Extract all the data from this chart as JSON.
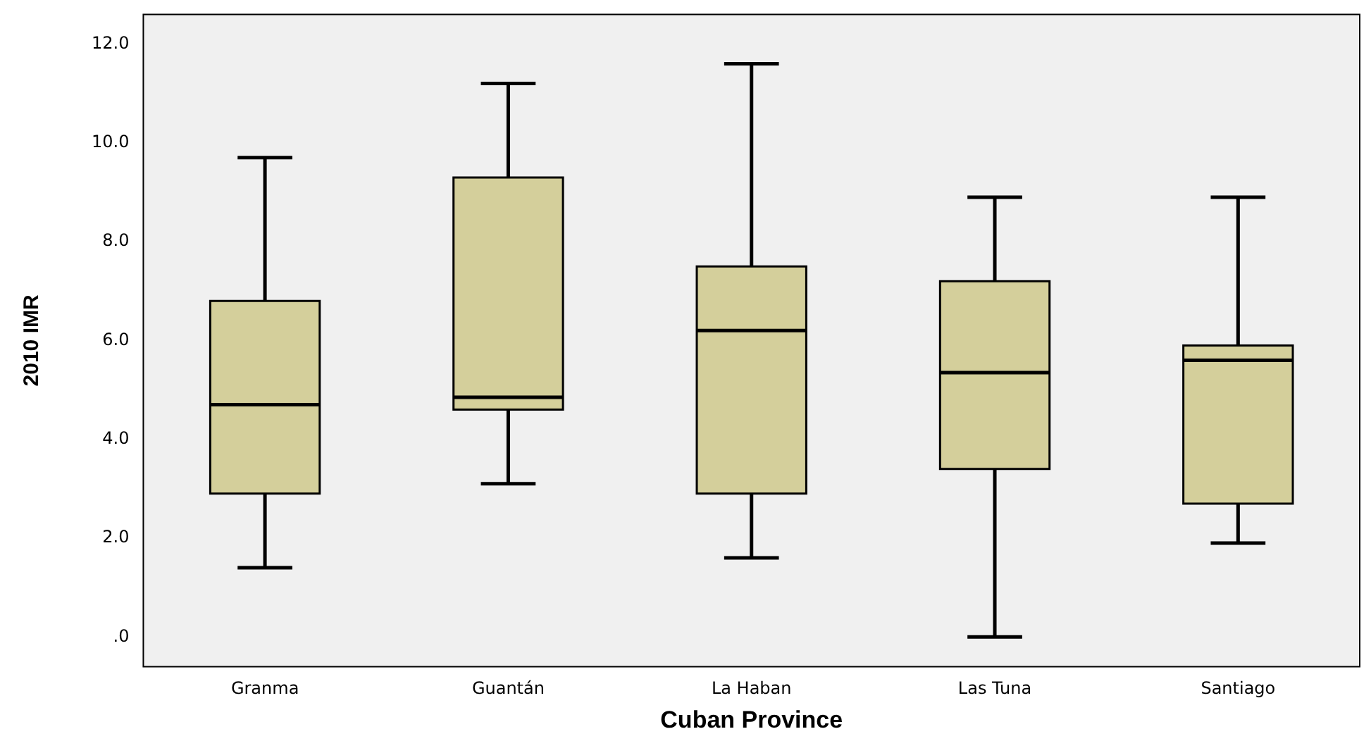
{
  "chart_data": {
    "type": "box",
    "xlabel": "Cuban Province",
    "ylabel": "2010 IMR",
    "categories": [
      "Granma",
      "Guantán",
      "La Haban",
      "Las Tuna",
      "Santiago"
    ],
    "boxes": [
      {
        "low": 1.4,
        "q1": 2.9,
        "median": 4.7,
        "q3": 6.8,
        "high": 9.7
      },
      {
        "low": 3.1,
        "q1": 4.6,
        "median": 4.85,
        "q3": 9.3,
        "high": 11.2
      },
      {
        "low": 1.6,
        "q1": 2.9,
        "median": 6.2,
        "q3": 7.5,
        "high": 11.6
      },
      {
        "low": 0,
        "q1": 3.4,
        "median": 5.35,
        "q3": 7.2,
        "high": 8.9
      },
      {
        "low": 1.9,
        "q1": 2.7,
        "median": 5.6,
        "q3": 5.9,
        "high": 8.9
      }
    ],
    "color": "#d4cf9b",
    "ylim": [
      -0.6,
      12.6
    ],
    "yticks": [
      {
        "value": 0,
        "label": ".0"
      },
      {
        "value": 2,
        "label": "2.0"
      },
      {
        "value": 4,
        "label": "4.0"
      },
      {
        "value": 6,
        "label": "6.0"
      },
      {
        "value": 8,
        "label": "8.0"
      },
      {
        "value": 10,
        "label": "10.0"
      },
      {
        "value": 12,
        "label": "12.0"
      }
    ]
  }
}
